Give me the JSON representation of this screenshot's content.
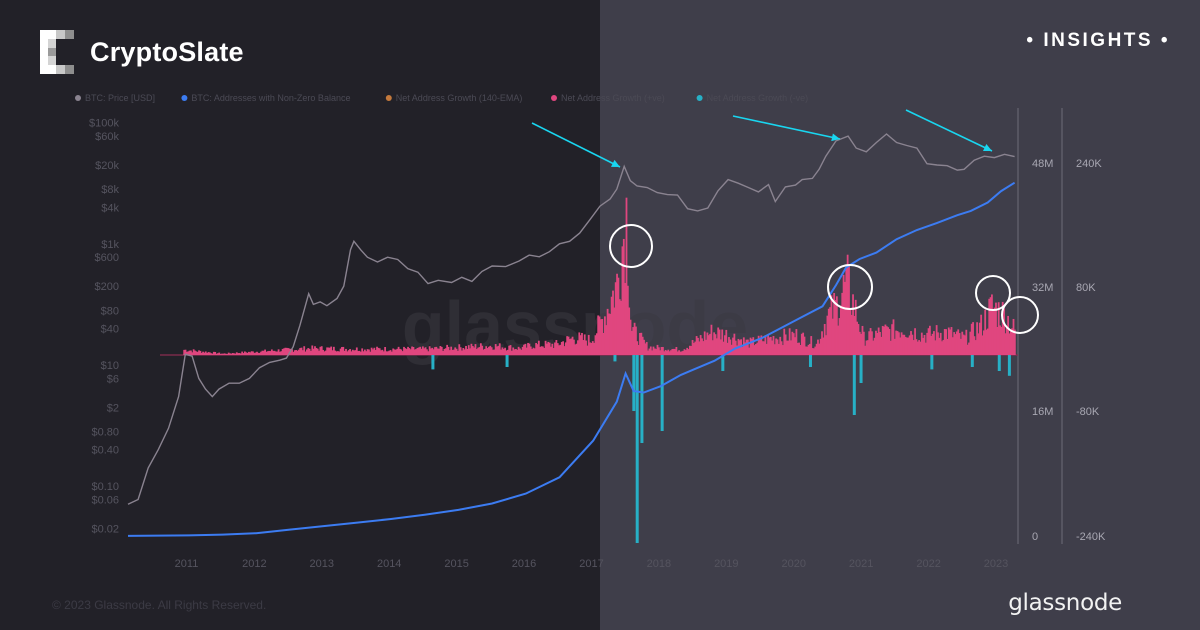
{
  "brand": {
    "name": "CryptoSlate",
    "tag": "• INSIGHTS •"
  },
  "footer": {
    "copyright": "© 2023 Glassnode. All Rights Reserved.",
    "provider": "glassnode"
  },
  "watermark": "glassnode",
  "colors": {
    "price": "#8a8390",
    "addresses": "#3c7cf2",
    "ema": "#c4793c",
    "net_pos": "#e0467f",
    "net_neg": "#27b0c6",
    "arrow": "#19d6f0",
    "circle": "#ffffff"
  },
  "chart_data": {
    "type": "line",
    "legend": [
      {
        "name": "BTC: Price [USD]",
        "color": "#8a8390"
      },
      {
        "name": "BTC: Addresses with Non-Zero Balance",
        "color": "#3c7cf2"
      },
      {
        "name": "Net Address Growth (140-EMA)",
        "color": "#c4793c"
      },
      {
        "name": "Net Address Growth (+ve)",
        "color": "#e0467f"
      },
      {
        "name": "Net Address Growth (-ve)",
        "color": "#27b0c6"
      }
    ],
    "x_ticks": [
      "2011",
      "2012",
      "2013",
      "2014",
      "2015",
      "2016",
      "2017",
      "2018",
      "2019",
      "2020",
      "2021",
      "2022",
      "2023"
    ],
    "x_range": [
      2010.6,
      2023.8
    ],
    "price_axis": {
      "scale": "log",
      "range": [
        0.015,
        150000
      ],
      "tick_values": [
        0.02,
        0.06,
        0.1,
        0.4,
        0.8,
        2,
        6,
        10,
        40,
        80,
        200,
        600,
        1000,
        4000,
        8000,
        20000,
        60000,
        100000
      ],
      "tick_labels": [
        "$0.02",
        "$0.06",
        "$0.10",
        "$0.40",
        "$0.80",
        "$2",
        "$6",
        "$10",
        "$40",
        "$80",
        "$200",
        "$600",
        "$1k",
        "$4k",
        "$8k",
        "$20k",
        "$60k",
        "$100k"
      ]
    },
    "addresses_axis": {
      "range": [
        0,
        60000000
      ],
      "tick_values": [
        0,
        16000000,
        32000000,
        48000000
      ],
      "tick_labels": [
        "0",
        "16M",
        "32M",
        "48M"
      ]
    },
    "growth_axis": {
      "range": [
        -240000,
        240000
      ],
      "tick_values": [
        -240000,
        -80000,
        80000,
        240000
      ],
      "tick_labels": [
        "-240K",
        "-80K",
        "80K",
        "240K"
      ]
    },
    "series": [
      {
        "name": "BTC: Price [USD]",
        "axis": "price",
        "points": [
          [
            2010.6,
            0.05
          ],
          [
            2010.75,
            0.06
          ],
          [
            2010.9,
            0.2
          ],
          [
            2011.05,
            0.4
          ],
          [
            2011.2,
            0.9
          ],
          [
            2011.35,
            3
          ],
          [
            2011.45,
            15
          ],
          [
            2011.55,
            14
          ],
          [
            2011.65,
            6
          ],
          [
            2011.75,
            4
          ],
          [
            2011.85,
            3
          ],
          [
            2011.95,
            4
          ],
          [
            2012.1,
            5
          ],
          [
            2012.25,
            5
          ],
          [
            2012.4,
            6
          ],
          [
            2012.55,
            9
          ],
          [
            2012.7,
            11
          ],
          [
            2012.85,
            12
          ],
          [
            2012.95,
            13
          ],
          [
            2013.05,
            20
          ],
          [
            2013.15,
            45
          ],
          [
            2013.28,
            150
          ],
          [
            2013.35,
            100
          ],
          [
            2013.45,
            110
          ],
          [
            2013.55,
            95
          ],
          [
            2013.7,
            125
          ],
          [
            2013.8,
            200
          ],
          [
            2013.9,
            800
          ],
          [
            2013.95,
            1100
          ],
          [
            2014.05,
            800
          ],
          [
            2014.15,
            600
          ],
          [
            2014.3,
            500
          ],
          [
            2014.45,
            600
          ],
          [
            2014.6,
            550
          ],
          [
            2014.75,
            390
          ],
          [
            2014.9,
            340
          ],
          [
            2015.05,
            220
          ],
          [
            2015.2,
            250
          ],
          [
            2015.4,
            230
          ],
          [
            2015.55,
            280
          ],
          [
            2015.7,
            240
          ],
          [
            2015.85,
            350
          ],
          [
            2016.0,
            430
          ],
          [
            2016.2,
            420
          ],
          [
            2016.4,
            520
          ],
          [
            2016.55,
            650
          ],
          [
            2016.7,
            610
          ],
          [
            2016.85,
            740
          ],
          [
            2017.0,
            1000
          ],
          [
            2017.15,
            1100
          ],
          [
            2017.3,
            1500
          ],
          [
            2017.45,
            2500
          ],
          [
            2017.6,
            4200
          ],
          [
            2017.75,
            5500
          ],
          [
            2017.85,
            8000
          ],
          [
            2017.96,
            19000
          ],
          [
            2018.05,
            11000
          ],
          [
            2018.15,
            9000
          ],
          [
            2018.3,
            8500
          ],
          [
            2018.45,
            7000
          ],
          [
            2018.6,
            6500
          ],
          [
            2018.75,
            6400
          ],
          [
            2018.9,
            3800
          ],
          [
            2019.05,
            3500
          ],
          [
            2019.2,
            3900
          ],
          [
            2019.35,
            7500
          ],
          [
            2019.5,
            11500
          ],
          [
            2019.65,
            10000
          ],
          [
            2019.8,
            8500
          ],
          [
            2019.95,
            7200
          ],
          [
            2020.1,
            9500
          ],
          [
            2020.2,
            5000
          ],
          [
            2020.35,
            8700
          ],
          [
            2020.5,
            9300
          ],
          [
            2020.6,
            11500
          ],
          [
            2020.75,
            12000
          ],
          [
            2020.85,
            17000
          ],
          [
            2020.95,
            28000
          ],
          [
            2021.1,
            50000
          ],
          [
            2021.28,
            60000
          ],
          [
            2021.4,
            38000
          ],
          [
            2021.55,
            33000
          ],
          [
            2021.7,
            47000
          ],
          [
            2021.85,
            65000
          ],
          [
            2022.0,
            47000
          ],
          [
            2022.15,
            42000
          ],
          [
            2022.3,
            38000
          ],
          [
            2022.45,
            21000
          ],
          [
            2022.6,
            20000
          ],
          [
            2022.75,
            19500
          ],
          [
            2022.9,
            16500
          ],
          [
            2023.0,
            17000
          ],
          [
            2023.15,
            24000
          ],
          [
            2023.3,
            28000
          ],
          [
            2023.45,
            26500
          ],
          [
            2023.6,
            30000
          ],
          [
            2023.75,
            27500
          ]
        ]
      },
      {
        "name": "BTC: Addresses with Non-Zero Balance",
        "axis": "addresses",
        "points": [
          [
            2010.6,
            10000
          ],
          [
            2011.5,
            90000
          ],
          [
            2012.0,
            200000
          ],
          [
            2012.5,
            400000
          ],
          [
            2013.0,
            900000
          ],
          [
            2013.5,
            1400000
          ],
          [
            2014.0,
            1900000
          ],
          [
            2014.5,
            2400000
          ],
          [
            2015.0,
            3000000
          ],
          [
            2015.5,
            3700000
          ],
          [
            2016.0,
            4600000
          ],
          [
            2016.5,
            6000000
          ],
          [
            2017.0,
            8300000
          ],
          [
            2017.5,
            13500000
          ],
          [
            2017.85,
            19000000
          ],
          [
            2017.98,
            23000000
          ],
          [
            2018.1,
            20500000
          ],
          [
            2018.25,
            20300000
          ],
          [
            2018.5,
            21200000
          ],
          [
            2018.8,
            22800000
          ],
          [
            2019.0,
            23600000
          ],
          [
            2019.3,
            24800000
          ],
          [
            2019.6,
            26500000
          ],
          [
            2020.0,
            28000000
          ],
          [
            2020.3,
            29500000
          ],
          [
            2020.6,
            31000000
          ],
          [
            2020.9,
            32500000
          ],
          [
            2021.1,
            35500000
          ],
          [
            2021.25,
            38000000
          ],
          [
            2021.45,
            39200000
          ],
          [
            2021.7,
            40100000
          ],
          [
            2022.0,
            42000000
          ],
          [
            2022.3,
            43300000
          ],
          [
            2022.6,
            44300000
          ],
          [
            2022.9,
            45400000
          ],
          [
            2023.1,
            46000000
          ],
          [
            2023.35,
            47200000
          ],
          [
            2023.55,
            48800000
          ],
          [
            2023.75,
            50000000
          ]
        ]
      },
      {
        "name": "Net Address Growth (+ve)",
        "axis": "growth",
        "points": [
          [
            2011.4,
            8000
          ],
          [
            2012.0,
            2000
          ],
          [
            2013.3,
            10000
          ],
          [
            2014.0,
            9000
          ],
          [
            2015.0,
            9000
          ],
          [
            2016.0,
            14000
          ],
          [
            2016.4,
            10000
          ],
          [
            2016.6,
            15000
          ],
          [
            2016.95,
            16000
          ],
          [
            2017.2,
            26000
          ],
          [
            2017.45,
            22000
          ],
          [
            2017.65,
            58000
          ],
          [
            2017.85,
            110000
          ],
          [
            2017.98,
            215000
          ],
          [
            2018.05,
            40000
          ],
          [
            2018.3,
            12000
          ],
          [
            2018.8,
            8000
          ],
          [
            2019.25,
            35000
          ],
          [
            2019.5,
            30000
          ],
          [
            2019.8,
            18000
          ],
          [
            2020.1,
            25000
          ],
          [
            2020.5,
            30000
          ],
          [
            2020.8,
            16000
          ],
          [
            2020.95,
            55000
          ],
          [
            2021.1,
            75000
          ],
          [
            2021.25,
            110000
          ],
          [
            2021.5,
            25000
          ],
          [
            2021.8,
            35000
          ],
          [
            2022.1,
            40000
          ],
          [
            2022.4,
            30000
          ],
          [
            2022.7,
            35000
          ],
          [
            2023.0,
            25000
          ],
          [
            2023.25,
            45000
          ],
          [
            2023.4,
            72000
          ],
          [
            2023.6,
            60000
          ],
          [
            2023.75,
            35000
          ]
        ]
      },
      {
        "name": "Net Address Growth (-ve)",
        "axis": "growth",
        "points": [
          [
            2015.1,
            -18000
          ],
          [
            2016.2,
            -15000
          ],
          [
            2017.8,
            -8000
          ],
          [
            2018.08,
            -70000
          ],
          [
            2018.13,
            -235000
          ],
          [
            2018.2,
            -110000
          ],
          [
            2018.5,
            -95000
          ],
          [
            2019.4,
            -20000
          ],
          [
            2020.7,
            -15000
          ],
          [
            2021.35,
            -75000
          ],
          [
            2021.45,
            -35000
          ],
          [
            2022.5,
            -18000
          ],
          [
            2023.1,
            -15000
          ],
          [
            2023.5,
            -20000
          ],
          [
            2023.65,
            -26000
          ]
        ]
      }
    ],
    "highlights": {
      "circles": [
        "2018-peak-growth",
        "2021-peak-growth",
        "2023-growth-a",
        "2023-growth-b"
      ],
      "arrows": [
        "2018-price-top",
        "2021-price-top",
        "2023-price"
      ]
    }
  }
}
